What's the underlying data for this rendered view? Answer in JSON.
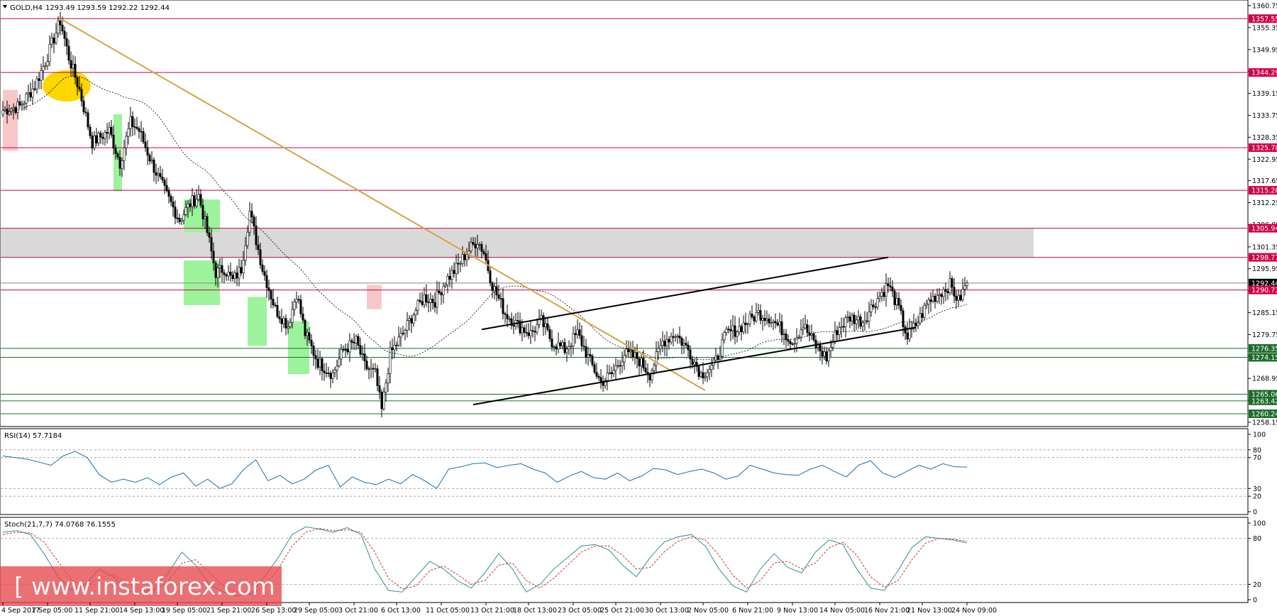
{
  "header": {
    "symbol": "GOLD,H4",
    "ohlc": "1293.49 1293.59 1292.22 1292.44"
  },
  "colors": {
    "bull_body": "#ffffff",
    "bear_body": "#000000",
    "resistance_tag": "#d0004c",
    "support_tag": "#1e6d2a",
    "current_tag": "#000000",
    "trendline": "#d4a545",
    "channel": "#000000",
    "zone": "#d9d9d9",
    "green_box": "#9cf39c",
    "red_box": "#f7c7c7",
    "highlight": "#ffd700",
    "rsi_line": "#1f6fa8",
    "stoch_main": "#2f8f9a",
    "stoch_signal": "#c0392b"
  },
  "chart_data": [
    {
      "type": "candlestick",
      "title": "GOLD,H4",
      "ylim": [
        1258.15,
        1360.75
      ],
      "y_ticks": [
        1360.75,
        1355.35,
        1349.95,
        1344.55,
        1339.15,
        1333.75,
        1328.35,
        1322.95,
        1317.65,
        1312.25,
        1306.85,
        1301.35,
        1295.95,
        1290.55,
        1285.15,
        1279.75,
        1274.35,
        1268.95,
        1263.55,
        1258.15
      ],
      "x_labels": [
        "4 Sep 2017",
        "7 Sep 05:00",
        "11 Sep 21:00",
        "14 Sep 13:00",
        "19 Sep 05:00",
        "21 Sep 21:00",
        "26 Sep 13:00",
        "29 Sep 05:00",
        "3 Oct 21:00",
        "6 Oct 13:00",
        "11 Oct 05:00",
        "13 Oct 21:00",
        "18 Oct 13:00",
        "23 Oct 05:00",
        "25 Oct 21:00",
        "30 Oct 13:00",
        "2 Nov 05:00",
        "6 Nov 21:00",
        "9 Nov 13:00",
        "14 Nov 05:00",
        "16 Nov 21:00",
        "21 Nov 13:00",
        "24 Nov 09:00"
      ],
      "close_path": [
        [
          0,
          1335
        ],
        [
          8,
          1336
        ],
        [
          15,
          1341
        ],
        [
          20,
          1347
        ],
        [
          27,
          1357
        ],
        [
          31,
          1348
        ],
        [
          36,
          1340
        ],
        [
          42,
          1327
        ],
        [
          50,
          1330
        ],
        [
          55,
          1322
        ],
        [
          60,
          1332
        ],
        [
          64,
          1330
        ],
        [
          70,
          1322
        ],
        [
          77,
          1314
        ],
        [
          83,
          1308
        ],
        [
          88,
          1312
        ],
        [
          92,
          1314
        ],
        [
          96,
          1305
        ],
        [
          100,
          1295
        ],
        [
          104,
          1296
        ],
        [
          108,
          1293
        ],
        [
          112,
          1296
        ],
        [
          116,
          1310
        ],
        [
          122,
          1296
        ],
        [
          128,
          1286
        ],
        [
          134,
          1282
        ],
        [
          138,
          1290
        ],
        [
          142,
          1280
        ],
        [
          148,
          1273
        ],
        [
          155,
          1270
        ],
        [
          160,
          1276
        ],
        [
          166,
          1278
        ],
        [
          170,
          1272
        ],
        [
          175,
          1270
        ],
        [
          178,
          1261
        ],
        [
          182,
          1275
        ],
        [
          188,
          1280
        ],
        [
          193,
          1285
        ],
        [
          198,
          1289
        ],
        [
          203,
          1288
        ],
        [
          208,
          1293
        ],
        [
          213,
          1296
        ],
        [
          218,
          1300
        ],
        [
          223,
          1303
        ],
        [
          226,
          1300
        ],
        [
          230,
          1292
        ],
        [
          236,
          1285
        ],
        [
          242,
          1282
        ],
        [
          248,
          1280
        ],
        [
          253,
          1283
        ],
        [
          258,
          1278
        ],
        [
          264,
          1276
        ],
        [
          270,
          1280
        ],
        [
          276,
          1273
        ],
        [
          281,
          1268
        ],
        [
          286,
          1270
        ],
        [
          292,
          1275
        ],
        [
          298,
          1274
        ],
        [
          304,
          1270
        ],
        [
          310,
          1278
        ],
        [
          316,
          1280
        ],
        [
          322,
          1276
        ],
        [
          328,
          1270
        ],
        [
          334,
          1272
        ],
        [
          340,
          1280
        ],
        [
          345,
          1281
        ],
        [
          350,
          1283
        ],
        [
          355,
          1285
        ],
        [
          360,
          1284
        ],
        [
          366,
          1281
        ],
        [
          371,
          1278
        ],
        [
          376,
          1282
        ],
        [
          382,
          1277
        ],
        [
          387,
          1274
        ],
        [
          392,
          1281
        ],
        [
          398,
          1284
        ],
        [
          404,
          1283
        ],
        [
          410,
          1288
        ],
        [
          416,
          1292
        ],
        [
          421,
          1286
        ],
        [
          425,
          1279
        ],
        [
          430,
          1283
        ],
        [
          435,
          1288
        ],
        [
          440,
          1290
        ],
        [
          445,
          1292
        ],
        [
          449,
          1288
        ],
        [
          453,
          1292.44
        ]
      ],
      "zones": [
        {
          "kind": "resistance_zone",
          "low": 1298.77,
          "high": 1305.94
        }
      ],
      "horizontal_levels": [
        {
          "value": 1357.55,
          "label": "1357.55",
          "kind": "resistance"
        },
        {
          "value": 1344.29,
          "label": "1344.29",
          "kind": "resistance"
        },
        {
          "value": 1325.78,
          "label": "1325.78",
          "kind": "resistance"
        },
        {
          "value": 1315.28,
          "label": "1315.28",
          "kind": "resistance"
        },
        {
          "value": 1305.94,
          "label": "1305.94",
          "kind": "resistance"
        },
        {
          "value": 1298.77,
          "label": "1298.77",
          "kind": "resistance"
        },
        {
          "value": 1292.44,
          "label": "1292.44",
          "kind": "current"
        },
        {
          "value": 1290.73,
          "label": "1290.73",
          "kind": "resistance"
        },
        {
          "value": 1276.35,
          "label": "1276.35",
          "kind": "support"
        },
        {
          "value": 1274.15,
          "label": "1274.15",
          "kind": "support"
        },
        {
          "value": 1265.06,
          "label": "1265.06",
          "kind": "support"
        },
        {
          "value": 1263.42,
          "label": "1263.42",
          "kind": "support"
        },
        {
          "value": 1260.24,
          "label": "1260.24",
          "kind": "support"
        }
      ],
      "trendline": {
        "from": [
          27,
          1357.55
        ],
        "to": [
          330,
          1266
        ]
      },
      "channel": {
        "upper": {
          "from": [
            225,
            1281
          ],
          "to": [
            416,
            1298.77
          ]
        },
        "lower": {
          "from": [
            221,
            1262.5
          ],
          "to": [
            429,
            1281.5
          ]
        }
      }
    },
    {
      "type": "line",
      "title": "RSI(14) 57.7184",
      "ylim": [
        0,
        100
      ],
      "y_ticks": [
        100,
        80,
        70,
        30,
        20,
        0
      ],
      "levels": [
        80,
        70,
        30,
        20
      ],
      "series": [
        {
          "name": "RSI(14)",
          "values": [
            72,
            70,
            68,
            64,
            60,
            72,
            78,
            70,
            48,
            38,
            42,
            38,
            44,
            35,
            45,
            50,
            33,
            42,
            30,
            36,
            55,
            67,
            40,
            47,
            36,
            42,
            54,
            60,
            32,
            45,
            38,
            35,
            42,
            36,
            48,
            40,
            30,
            55,
            58,
            62,
            63,
            57,
            60,
            62,
            55,
            50,
            38,
            46,
            52,
            44,
            42,
            50,
            40,
            46,
            56,
            54,
            48,
            52,
            55,
            50,
            42,
            46,
            60,
            55,
            50,
            48,
            47,
            55,
            60,
            52,
            45,
            60,
            66,
            50,
            44,
            52,
            60,
            55,
            62,
            58.0,
            57.72
          ]
        }
      ]
    },
    {
      "type": "line",
      "title": "Stoch(21,7,7) 74.0768 76.1555",
      "ylim": [
        0,
        100
      ],
      "y_ticks": [
        100,
        80,
        20,
        0
      ],
      "levels": [
        80,
        20
      ],
      "series": [
        {
          "name": "main",
          "values": [
            88,
            90,
            85,
            60,
            30,
            12,
            20,
            40,
            30,
            12,
            8,
            15,
            35,
            62,
            45,
            20,
            10,
            5,
            8,
            30,
            55,
            85,
            95,
            92,
            88,
            94,
            85,
            40,
            12,
            10,
            30,
            50,
            40,
            25,
            15,
            35,
            60,
            40,
            10,
            20,
            40,
            55,
            70,
            72,
            65,
            45,
            30,
            55,
            75,
            82,
            85,
            70,
            40,
            18,
            10,
            40,
            60,
            42,
            35,
            62,
            78,
            72,
            40,
            15,
            12,
            38,
            68,
            82,
            80,
            78,
            74.08
          ]
        },
        {
          "name": "signal",
          "values": [
            85,
            88,
            87,
            75,
            50,
            25,
            18,
            28,
            33,
            22,
            12,
            12,
            24,
            48,
            52,
            35,
            18,
            10,
            7,
            18,
            40,
            70,
            88,
            93,
            90,
            91,
            88,
            62,
            28,
            14,
            18,
            38,
            44,
            33,
            20,
            25,
            45,
            48,
            25,
            15,
            28,
            45,
            62,
            70,
            70,
            58,
            40,
            42,
            62,
            76,
            82,
            78,
            58,
            32,
            15,
            25,
            48,
            50,
            40,
            48,
            68,
            75,
            58,
            30,
            16,
            25,
            52,
            74,
            80,
            79,
            76.16
          ]
        }
      ]
    }
  ],
  "watermark": "[ www.instaforex.com ]"
}
